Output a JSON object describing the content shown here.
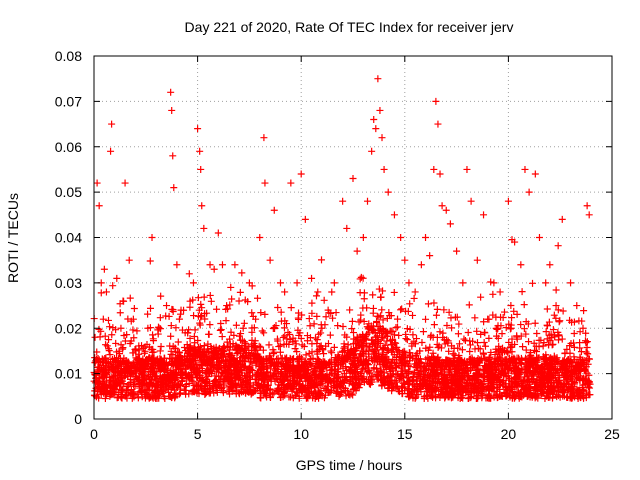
{
  "chart_data": {
    "type": "scatter",
    "title": "Day 221 of 2020, Rate Of TEC Index for receiver jerv",
    "xlabel": "GPS time / hours",
    "ylabel": "ROTI / TECUs",
    "xlim": [
      0,
      25
    ],
    "ylim": [
      0,
      0.08
    ],
    "x_ticks": [
      0,
      5,
      10,
      15,
      20,
      25
    ],
    "y_ticks": [
      0,
      0.01,
      0.02,
      0.03,
      0.04,
      0.05,
      0.06,
      0.07,
      0.08
    ],
    "x_tick_labels": [
      "0",
      "5",
      "10",
      "15",
      "20",
      "25"
    ],
    "y_tick_labels": [
      "0",
      "0.01",
      "0.02",
      "0.03",
      "0.04",
      "0.05",
      "0.06",
      "0.07",
      "0.08"
    ],
    "grid": true,
    "marker": "+",
    "color": "#ff0000",
    "series": [
      {
        "x": [
          0.05,
          0.15,
          0.25,
          0.35,
          0.45,
          0.5,
          0.6,
          0.8,
          0.85,
          1.1,
          1.3,
          1.4,
          1.5,
          1.7,
          1.9,
          2.0,
          2.2,
          2.6,
          2.8,
          3.0,
          3.2,
          3.5,
          3.7,
          3.75,
          3.8,
          3.85,
          4.0,
          4.2,
          4.4,
          4.6,
          4.8,
          5.0,
          5.1,
          5.15,
          5.2,
          5.3,
          5.6,
          5.8,
          6.0,
          6.2,
          6.4,
          6.6,
          6.8,
          7.0,
          7.2,
          7.5,
          7.8,
          8.0,
          8.2,
          8.25,
          8.5,
          8.7,
          9.0,
          9.2,
          9.5,
          9.8,
          10.0,
          10.2,
          10.5,
          10.8,
          11.0,
          11.3,
          11.6,
          12.0,
          12.2,
          12.5,
          12.7,
          13.0,
          13.2,
          13.4,
          13.5,
          13.6,
          13.7,
          13.8,
          13.9,
          14.0,
          14.2,
          14.5,
          14.8,
          15.0,
          15.2,
          15.5,
          15.8,
          16.0,
          16.2,
          16.4,
          16.5,
          16.6,
          16.7,
          16.8,
          17.0,
          17.2,
          17.5,
          17.8,
          18.0,
          18.2,
          18.5,
          18.8,
          19.0,
          19.3,
          19.6,
          20.0,
          20.3,
          20.6,
          20.8,
          21.0,
          21.3,
          21.5,
          21.8,
          22.0,
          22.3,
          22.6,
          23.0,
          23.3,
          23.6,
          23.8,
          23.9
        ],
        "y": [
          0.018,
          0.052,
          0.047,
          0.03,
          0.022,
          0.033,
          0.028,
          0.059,
          0.065,
          0.031,
          0.02,
          0.026,
          0.052,
          0.035,
          0.022,
          0.015,
          0.012,
          0.02,
          0.04,
          0.013,
          0.015,
          0.025,
          0.072,
          0.068,
          0.058,
          0.051,
          0.034,
          0.024,
          0.019,
          0.032,
          0.03,
          0.064,
          0.059,
          0.055,
          0.047,
          0.042,
          0.034,
          0.033,
          0.041,
          0.034,
          0.025,
          0.029,
          0.034,
          0.026,
          0.02,
          0.03,
          0.022,
          0.04,
          0.062,
          0.052,
          0.035,
          0.046,
          0.03,
          0.028,
          0.052,
          0.03,
          0.054,
          0.044,
          0.031,
          0.028,
          0.02,
          0.024,
          0.03,
          0.048,
          0.042,
          0.053,
          0.037,
          0.04,
          0.048,
          0.059,
          0.066,
          0.064,
          0.075,
          0.068,
          0.062,
          0.055,
          0.05,
          0.045,
          0.04,
          0.035,
          0.03,
          0.028,
          0.034,
          0.04,
          0.036,
          0.055,
          0.07,
          0.065,
          0.054,
          0.047,
          0.046,
          0.043,
          0.037,
          0.03,
          0.055,
          0.048,
          0.035,
          0.045,
          0.022,
          0.03,
          0.028,
          0.048,
          0.039,
          0.034,
          0.055,
          0.05,
          0.054,
          0.04,
          0.03,
          0.034,
          0.025,
          0.044,
          0.03,
          0.025,
          0.02,
          0.047,
          0.045
        ]
      }
    ]
  }
}
